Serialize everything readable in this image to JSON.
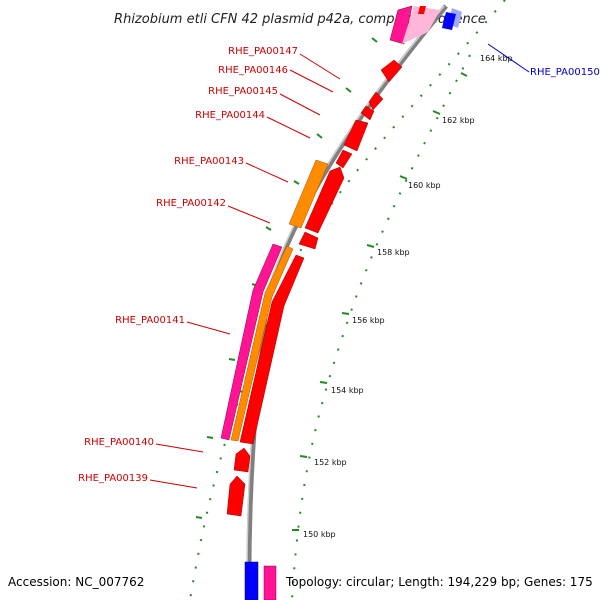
{
  "title": "Rhizobium etli CFN 42 plasmid p42a, complete sequence",
  "footer": {
    "accession": "Accession: NC_007762",
    "topology": "Topology: circular; Length: 194,229 bp; Genes: 175"
  },
  "colors": {
    "backbone": "#888888",
    "gene_red": "#ff0000",
    "gene_orange": "#ff8c00",
    "gene_pink": "#ff1493",
    "gene_blue": "#0000ff",
    "gene_lightblue": "#9fa8ff",
    "gene_lightpink": "#ffb6d9",
    "tick_green": "#228b22",
    "label_red": "#cc0000",
    "label_blue": "#0000cc"
  },
  "ticks": [
    {
      "label": "164 kbp"
    },
    {
      "label": "162 kbp"
    },
    {
      "label": "160 kbp"
    },
    {
      "label": "158 kbp"
    },
    {
      "label": "156 kbp"
    },
    {
      "label": "154 kbp"
    },
    {
      "label": "152 kbp"
    },
    {
      "label": "150 kbp"
    }
  ],
  "gene_labels": [
    {
      "name": "RHE_PA00147",
      "color": "red"
    },
    {
      "name": "RHE_PA00146",
      "color": "red"
    },
    {
      "name": "RHE_PA00145",
      "color": "red"
    },
    {
      "name": "RHE_PA00144",
      "color": "red"
    },
    {
      "name": "RHE_PA00143",
      "color": "red"
    },
    {
      "name": "RHE_PA00142",
      "color": "red"
    },
    {
      "name": "RHE_PA00141",
      "color": "red"
    },
    {
      "name": "RHE_PA00140",
      "color": "red"
    },
    {
      "name": "RHE_PA00139",
      "color": "red"
    },
    {
      "name": "RHE_PA00150",
      "color": "blue"
    }
  ]
}
